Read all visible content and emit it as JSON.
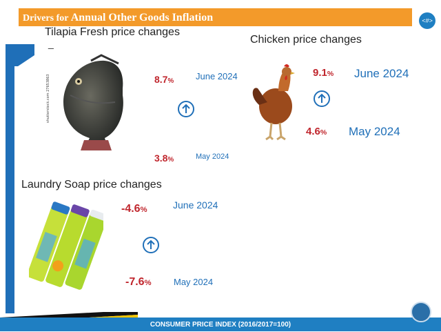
{
  "slide": {
    "title_prefix": "Drivers for ",
    "title_main": "Annual Other Goods Inflation",
    "page_badge": "<#>",
    "footer": "CONSUMER PRICE INDEX (2016/2017=100)"
  },
  "tilapia": {
    "heading": "Tilapia Fresh price changes",
    "dash": "_",
    "june_value": "8.7",
    "june_label": "June 2024",
    "may_value": "3.8",
    "may_label": "May  2024",
    "icon": "up-arrow-circle-icon"
  },
  "chicken": {
    "heading": "Chicken price changes",
    "june_value": "9.1",
    "june_label": "June 2024",
    "may_value": "4.6",
    "may_label": "May  2024",
    "icon": "up-arrow-circle-icon"
  },
  "soap": {
    "heading": "Laundry Soap price changes",
    "june_value": "-4.6",
    "june_label": "June 2024",
    "may_value": "-7.6",
    "may_label": "May  2024",
    "icon": "up-arrow-circle-icon"
  },
  "percent_sign": "%",
  "colors": {
    "title_bar": "#f39a2a",
    "accent_blue": "#1f6fb8",
    "value_red": "#c0262d",
    "footer": "#1f7fc2"
  }
}
